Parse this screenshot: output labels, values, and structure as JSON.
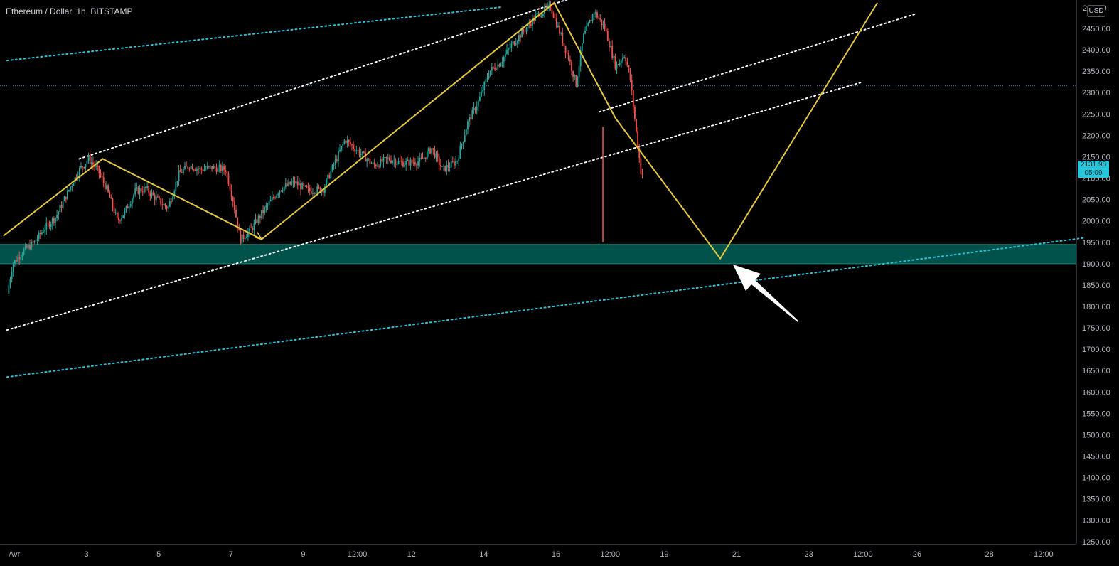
{
  "header": {
    "symbol_title": "Ethereum / Dollar, 1h, BITSTAMP",
    "currency_button": "USD",
    "top_partial_tick": "2       0"
  },
  "last_price": {
    "value": "2131.98",
    "countdown": "05:09"
  },
  "colors": {
    "background": "#000000",
    "candle_up": "#26a69a",
    "candle_down": "#ef5350",
    "pattern_line": "#e5c73a",
    "channel_white": "#ffffff",
    "channel_cyan": "#26c6da",
    "support_zone": "#00524a",
    "horizontal_level": "#3f64c8",
    "axis_text": "#b2b5be"
  },
  "chart_data": {
    "type": "candlestick",
    "title": "Ethereum / Dollar, 1h, BITSTAMP",
    "y_axis": {
      "min": 1250,
      "max": 2500,
      "side": "right",
      "ticks": [
        "2450.00",
        "2400.00",
        "2350.00",
        "2300.00",
        "2250.00",
        "2200.00",
        "2150.00",
        "2100.00",
        "2050.00",
        "2000.00",
        "1950.00",
        "1900.00",
        "1850.00",
        "1800.00",
        "1750.00",
        "1700.00",
        "1650.00",
        "1600.00",
        "1550.00",
        "1500.00",
        "1450.00",
        "1400.00",
        "1350.00",
        "1300.00",
        "1250.00"
      ]
    },
    "x_axis": {
      "ticks": [
        {
          "label": "Avr",
          "day": 1
        },
        {
          "label": "3",
          "day": 3
        },
        {
          "label": "5",
          "day": 5
        },
        {
          "label": "7",
          "day": 7
        },
        {
          "label": "9",
          "day": 9
        },
        {
          "label": "12:00",
          "day": 10.5
        },
        {
          "label": "12",
          "day": 12
        },
        {
          "label": "14",
          "day": 14
        },
        {
          "label": "16",
          "day": 16
        },
        {
          "label": "12:00",
          "day": 17.5
        },
        {
          "label": "19",
          "day": 19
        },
        {
          "label": "21",
          "day": 21
        },
        {
          "label": "23",
          "day": 23
        },
        {
          "label": "12:00",
          "day": 24.5
        },
        {
          "label": "26",
          "day": 26
        },
        {
          "label": "28",
          "day": 28
        },
        {
          "label": "12:00",
          "day": 29.5
        }
      ]
    },
    "price_path": [
      [
        0.85,
        1830
      ],
      [
        1.0,
        1900
      ],
      [
        1.3,
        1930
      ],
      [
        1.6,
        1950
      ],
      [
        1.9,
        1985
      ],
      [
        2.2,
        2010
      ],
      [
        2.6,
        2080
      ],
      [
        2.85,
        2120
      ],
      [
        3.1,
        2145
      ],
      [
        3.35,
        2120
      ],
      [
        3.6,
        2075
      ],
      [
        3.9,
        2000
      ],
      [
        4.1,
        2020
      ],
      [
        4.4,
        2070
      ],
      [
        4.7,
        2075
      ],
      [
        5.0,
        2050
      ],
      [
        5.3,
        2030
      ],
      [
        5.6,
        2110
      ],
      [
        5.9,
        2130
      ],
      [
        6.2,
        2120
      ],
      [
        6.5,
        2125
      ],
      [
        6.9,
        2120
      ],
      [
        7.1,
        2050
      ],
      [
        7.3,
        1955
      ],
      [
        7.6,
        1980
      ],
      [
        8.0,
        2030
      ],
      [
        8.4,
        2075
      ],
      [
        8.8,
        2090
      ],
      [
        9.2,
        2070
      ],
      [
        9.6,
        2075
      ],
      [
        10.2,
        2190
      ],
      [
        10.6,
        2160
      ],
      [
        11.0,
        2130
      ],
      [
        11.4,
        2145
      ],
      [
        11.8,
        2135
      ],
      [
        12.3,
        2140
      ],
      [
        12.6,
        2170
      ],
      [
        12.9,
        2120
      ],
      [
        13.3,
        2140
      ],
      [
        13.6,
        2230
      ],
      [
        13.9,
        2280
      ],
      [
        14.2,
        2350
      ],
      [
        14.5,
        2370
      ],
      [
        14.8,
        2410
      ],
      [
        15.1,
        2440
      ],
      [
        15.5,
        2480
      ],
      [
        15.9,
        2500
      ],
      [
        16.15,
        2440
      ],
      [
        16.4,
        2380
      ],
      [
        16.6,
        2320
      ],
      [
        16.8,
        2430
      ],
      [
        17.1,
        2490
      ],
      [
        17.4,
        2450
      ],
      [
        17.7,
        2360
      ],
      [
        17.95,
        2390
      ],
      [
        18.1,
        2330
      ],
      [
        18.25,
        2220
      ],
      [
        18.4,
        2110
      ]
    ],
    "wicks": [
      {
        "day": 17.3,
        "low": 1950,
        "high": 2220
      }
    ],
    "last_price": 2131.98,
    "annotations": {
      "support_zone": {
        "from": 1900,
        "to": 1945
      },
      "horizontal_level": 2316,
      "projection_zigzag": [
        [
          0.7,
          1965
        ],
        [
          3.45,
          2145
        ],
        [
          7.85,
          1957
        ],
        [
          15.95,
          2510
        ],
        [
          17.65,
          2240
        ],
        [
          20.55,
          1912
        ],
        [
          24.9,
          2510
        ]
      ],
      "white_channel_lower": [
        [
          0.8,
          1745
        ],
        [
          24.5,
          2325
        ]
      ],
      "white_channel_upper": [
        [
          2.8,
          2145
        ],
        [
          16.4,
          2520
        ]
      ],
      "white_channel_extension": [
        [
          17.2,
          2255
        ],
        [
          26.0,
          2485
        ]
      ],
      "cyan_channel_lower": [
        [
          0.8,
          1635
        ],
        [
          30.6,
          1960
        ]
      ],
      "cyan_channel_upper": [
        [
          0.8,
          2375
        ],
        [
          14.5,
          2500
        ]
      ],
      "arrow": {
        "tail": [
          22.7,
          1765
        ],
        "head": [
          20.9,
          1898
        ]
      }
    }
  }
}
